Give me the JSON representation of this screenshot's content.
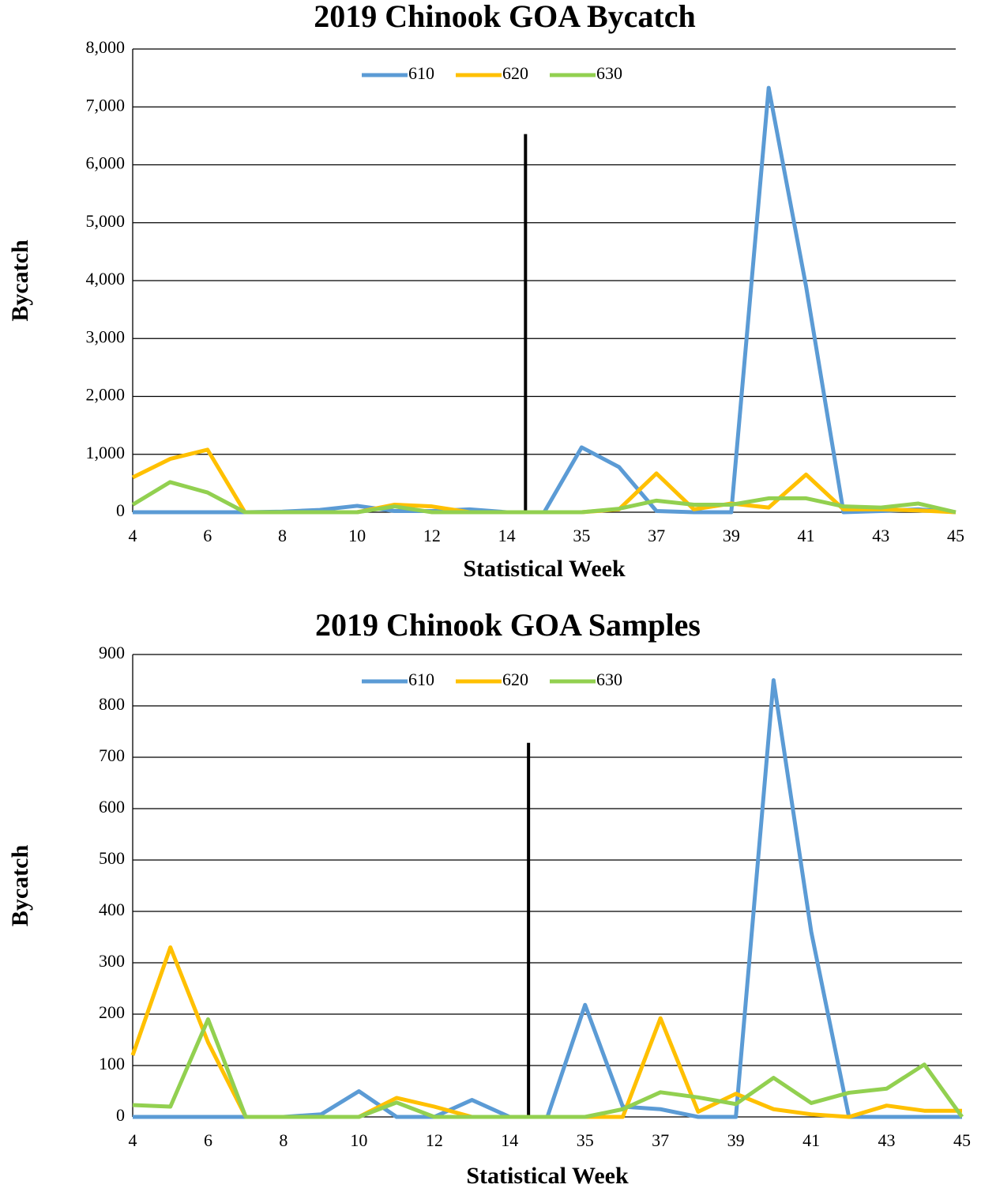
{
  "chart_data": [
    {
      "type": "line",
      "title": "2019 Chinook GOA Bycatch",
      "x_label": "Statistical Week",
      "y_label": "Bycatch",
      "categories": [
        4,
        null,
        6,
        null,
        8,
        null,
        10,
        null,
        12,
        null,
        14,
        null,
        35,
        null,
        37,
        null,
        39,
        null,
        41,
        null,
        43,
        null,
        45
      ],
      "series": [
        {
          "name": "610",
          "color": "#5b9bd5",
          "values": [
            0,
            0,
            0,
            0,
            10,
            40,
            110,
            20,
            20,
            50,
            0,
            0,
            1120,
            780,
            20,
            0,
            0,
            7330,
            3900,
            0,
            20,
            50,
            0
          ]
        },
        {
          "name": "620",
          "color": "#ffc000",
          "values": [
            600,
            920,
            1080,
            0,
            0,
            0,
            0,
            130,
            100,
            0,
            0,
            0,
            0,
            50,
            670,
            50,
            150,
            80,
            650,
            50,
            50,
            30,
            0
          ]
        },
        {
          "name": "630",
          "color": "#92d050",
          "values": [
            130,
            520,
            340,
            0,
            0,
            0,
            0,
            100,
            0,
            0,
            0,
            0,
            0,
            60,
            200,
            130,
            130,
            240,
            240,
            100,
            80,
            150,
            0
          ]
        }
      ],
      "ylim": [
        0,
        8000
      ],
      "yticks": [
        0,
        {
          "value": 1000,
          "label": "1,000"
        },
        {
          "value": 2000,
          "label": "2,000"
        },
        {
          "value": 3000,
          "label": "3,000"
        },
        {
          "value": 4000,
          "label": "4,000"
        },
        {
          "value": 5000,
          "label": "5,000"
        },
        {
          "value": 6000,
          "label": "6,000"
        },
        {
          "value": 7000,
          "label": "7,000"
        },
        {
          "value": 8000,
          "label": "8,000"
        }
      ],
      "grid": true,
      "legend": "top",
      "divider_value": 6530
    },
    {
      "type": "line",
      "title": "2019 Chinook GOA Samples",
      "x_label": "Statistical Week",
      "y_label": "Bycatch",
      "categories": [
        4,
        null,
        6,
        null,
        8,
        null,
        10,
        null,
        12,
        null,
        14,
        null,
        35,
        null,
        37,
        null,
        39,
        null,
        41,
        null,
        43,
        null,
        45
      ],
      "series": [
        {
          "name": "610",
          "color": "#5b9bd5",
          "values": [
            0,
            0,
            0,
            0,
            0,
            5,
            50,
            0,
            0,
            33,
            0,
            0,
            218,
            20,
            15,
            0,
            0,
            850,
            360,
            0,
            0,
            0,
            0
          ]
        },
        {
          "name": "620",
          "color": "#ffc000",
          "values": [
            120,
            330,
            145,
            0,
            0,
            0,
            0,
            37,
            20,
            0,
            0,
            0,
            0,
            0,
            192,
            10,
            45,
            15,
            5,
            0,
            22,
            12,
            12
          ]
        },
        {
          "name": "630",
          "color": "#92d050",
          "values": [
            23,
            20,
            190,
            0,
            0,
            0,
            0,
            28,
            0,
            0,
            0,
            0,
            0,
            15,
            48,
            38,
            25,
            76,
            27,
            47,
            55,
            102,
            0
          ]
        }
      ],
      "ylim": [
        0,
        900
      ],
      "yticks": [
        0,
        100,
        200,
        300,
        400,
        500,
        600,
        700,
        800,
        900
      ],
      "grid": true,
      "legend": "top",
      "divider_value": 728
    }
  ]
}
